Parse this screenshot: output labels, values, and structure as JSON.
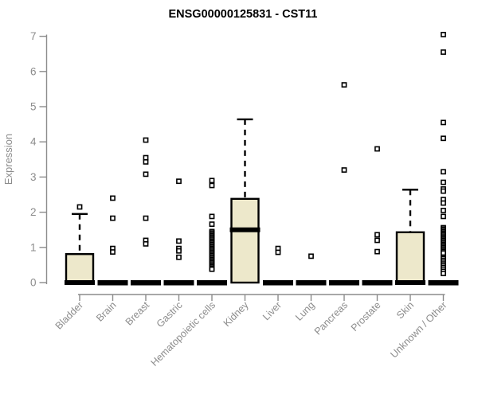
{
  "chart_data": {
    "type": "boxplot",
    "title": "ENSG00000125831 - CST11",
    "ylabel": "Expression",
    "xlabel": "",
    "ylim": [
      0,
      7
    ],
    "yticks": [
      0,
      1,
      2,
      3,
      4,
      5,
      6,
      7
    ],
    "grid": false,
    "legend": "none",
    "categories": [
      "Bladder",
      "Brain",
      "Breast",
      "Gastric",
      "Hematopoietic cells",
      "Kidney",
      "Liver",
      "Lung",
      "Pancreas",
      "Prostate",
      "Skin",
      "Unknown / Other"
    ],
    "series": [
      {
        "category": "Bladder",
        "q1": 0,
        "median": 0,
        "q3": 0.81,
        "whisker_low": 0,
        "whisker_high": 1.95,
        "outliers": [
          2.15
        ]
      },
      {
        "category": "Brain",
        "q1": 0,
        "median": 0,
        "q3": 0,
        "whisker_low": 0,
        "whisker_high": 0,
        "outliers": [
          2.4,
          1.83,
          0.97,
          0.87
        ]
      },
      {
        "category": "Breast",
        "q1": 0,
        "median": 0,
        "q3": 0,
        "whisker_low": 0,
        "whisker_high": 0,
        "outliers": [
          4.05,
          3.55,
          3.43,
          3.08,
          1.83,
          1.2,
          1.1
        ]
      },
      {
        "category": "Gastric",
        "q1": 0,
        "median": 0,
        "q3": 0,
        "whisker_low": 0,
        "whisker_high": 0,
        "outliers": [
          2.88,
          1.18,
          0.97,
          0.9,
          0.72
        ]
      },
      {
        "category": "Hematopoietic cells",
        "q1": 0,
        "median": 0,
        "q3": 0,
        "whisker_low": 0,
        "whisker_high": 0,
        "outliers": [
          2.9,
          2.76,
          1.88,
          1.66,
          1.45,
          1.41,
          1.37,
          1.33,
          1.29,
          1.25,
          1.21,
          1.17,
          1.13,
          1.09,
          1.05,
          1.01,
          0.97,
          0.93,
          0.89,
          0.85,
          0.81,
          0.77,
          0.73,
          0.69,
          0.65,
          0.61,
          0.57,
          0.53,
          0.49,
          0.45,
          0.41,
          0.38
        ]
      },
      {
        "category": "Kidney",
        "q1": 0,
        "median": 1.5,
        "q3": 2.38,
        "whisker_low": 0,
        "whisker_high": 4.64,
        "outliers": []
      },
      {
        "category": "Liver",
        "q1": 0,
        "median": 0,
        "q3": 0,
        "whisker_low": 0,
        "whisker_high": 0,
        "outliers": [
          0.97,
          0.86
        ]
      },
      {
        "category": "Lung",
        "q1": 0,
        "median": 0,
        "q3": 0,
        "whisker_low": 0,
        "whisker_high": 0,
        "outliers": [
          0.75
        ]
      },
      {
        "category": "Pancreas",
        "q1": 0,
        "median": 0,
        "q3": 0,
        "whisker_low": 0,
        "whisker_high": 0,
        "outliers": [
          5.62,
          3.2
        ]
      },
      {
        "category": "Prostate",
        "q1": 0,
        "median": 0,
        "q3": 0,
        "whisker_low": 0,
        "whisker_high": 0,
        "outliers": [
          3.8,
          1.36,
          1.2,
          0.88
        ]
      },
      {
        "category": "Skin",
        "q1": 0,
        "median": 0,
        "q3": 1.43,
        "whisker_low": 0,
        "whisker_high": 2.64,
        "outliers": []
      },
      {
        "category": "Unknown / Other",
        "q1": 0,
        "median": 0,
        "q3": 0,
        "whisker_low": 0,
        "whisker_high": 0,
        "outliers": [
          7.05,
          6.55,
          4.55,
          4.1,
          3.15,
          2.85,
          2.66,
          2.6,
          2.36,
          2.26,
          2.05,
          1.88,
          1.56,
          1.52,
          1.48,
          1.44,
          1.4,
          1.36,
          1.32,
          1.28,
          1.24,
          1.2,
          1.16,
          1.12,
          1.08,
          1.04,
          1.0,
          0.96,
          0.92,
          0.88,
          0.84,
          0.72,
          0.68,
          0.63,
          0.58,
          0.53,
          0.48,
          0.43,
          0.38,
          0.32,
          0.26
        ]
      }
    ],
    "colors": {
      "box_fill": "#EDE8CB",
      "box_stroke": "#000000",
      "median": "#000000",
      "outlier_fill": "#FFFFFF",
      "outlier_stroke": "#000000",
      "axis": "#8C8C8C",
      "title": "#000000",
      "background": "#FFFFFF"
    }
  }
}
